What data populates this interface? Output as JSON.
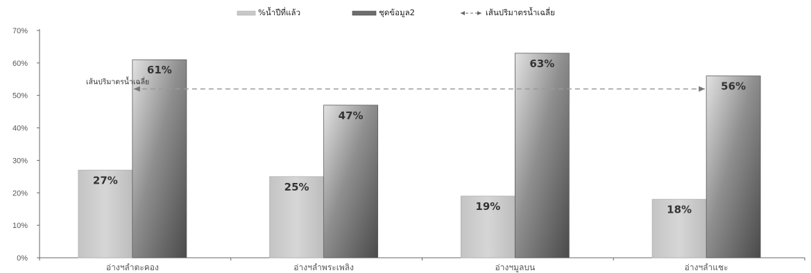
{
  "chart_data": {
    "type": "bar",
    "categories": [
      "อ่างฯลำตะคอง",
      "อ่างฯลำพระเพลิง",
      "อ่างฯมูลบน",
      "อ่างฯลำแชะ"
    ],
    "series": [
      {
        "name": "%น้ำปีที่แล้ว",
        "values": [
          27,
          25,
          19,
          18
        ],
        "labels": [
          "27%",
          "25%",
          "19%",
          "18%"
        ],
        "color": "#cccccc"
      },
      {
        "name": "ชุดข้อมูล2",
        "values": [
          61,
          47,
          63,
          56
        ],
        "labels": [
          "61%",
          "47%",
          "63%",
          "56%"
        ],
        "color": "#7a7a7a"
      }
    ],
    "reference_line": {
      "name": "เส้นปริมาตรน้ำเฉลี่ย",
      "value": 52,
      "annotation": "เส้นปริมาตรน้ำเฉลี่ย",
      "style": "dashed",
      "color": "#999999"
    },
    "ylim": [
      0,
      70
    ],
    "yticks": [
      0,
      10,
      20,
      30,
      40,
      50,
      60,
      70
    ],
    "ytick_labels": [
      "0%",
      "10%",
      "20%",
      "30%",
      "40%",
      "50%",
      "60%",
      "70%"
    ],
    "grid": false,
    "legend_position": "top-center",
    "xlabel": "",
    "ylabel": ""
  }
}
